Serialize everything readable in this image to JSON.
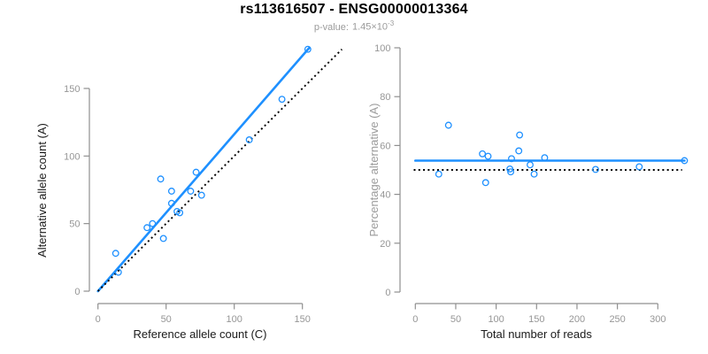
{
  "header": {
    "title": "rs113616507 - ENSG00000013364",
    "pvalue_label": "p-value:",
    "pvalue_base": "1.45×10",
    "pvalue_exponent": "-3"
  },
  "colors": {
    "accent_blue": "#1E90FF",
    "reference_line_black": "#000000",
    "axis_gray": "#8F8F8F",
    "tick_label_gray": "#969696",
    "axis_title_dark": "#1A1A1A",
    "axis_title_gray": "#9B9B9B",
    "background": "#FFFFFF"
  },
  "chart_data": [
    {
      "id": "ref-vs-alt-scatter",
      "type": "scatter",
      "title": "",
      "xlabel": "Reference allele count (C)",
      "ylabel": "Alternative allele count (A)",
      "xticks": [
        0,
        50,
        100,
        150
      ],
      "yticks": [
        0,
        50,
        100,
        150
      ],
      "xlim": [
        0,
        181
      ],
      "ylim": [
        0,
        181
      ],
      "grid": false,
      "marker": "open-circle",
      "points": [
        [
          13,
          28
        ],
        [
          15,
          14
        ],
        [
          36,
          47
        ],
        [
          40,
          50
        ],
        [
          46,
          83
        ],
        [
          48,
          39
        ],
        [
          54,
          74
        ],
        [
          54,
          65
        ],
        [
          58,
          59
        ],
        [
          60,
          58
        ],
        [
          68,
          74
        ],
        [
          72,
          88
        ],
        [
          76,
          71
        ],
        [
          111,
          112
        ],
        [
          135,
          142
        ],
        [
          154,
          179
        ]
      ],
      "lines": [
        {
          "name": "fit-line",
          "x1": 0,
          "y1": 0,
          "x2": 155,
          "y2": 180,
          "style": "solid",
          "color": "accent"
        },
        {
          "name": "identity-line",
          "x1": 0,
          "y1": 0,
          "x2": 179,
          "y2": 179,
          "style": "dotted",
          "color": "black"
        }
      ]
    },
    {
      "id": "reads-vs-percentage-scatter",
      "type": "scatter",
      "title": "",
      "xlabel": "Total number of reads",
      "ylabel": "Percentage alternative (A)",
      "xticks": [
        0,
        50,
        100,
        150,
        200,
        250,
        300
      ],
      "yticks": [
        0,
        20,
        40,
        60,
        80,
        100
      ],
      "xlim": [
        0,
        335
      ],
      "ylim": [
        0,
        100
      ],
      "grid": false,
      "marker": "open-circle",
      "points": [
        [
          41,
          68.3
        ],
        [
          29,
          48.3
        ],
        [
          83,
          56.6
        ],
        [
          90,
          55.6
        ],
        [
          129,
          64.3
        ],
        [
          87,
          44.8
        ],
        [
          128,
          57.8
        ],
        [
          119,
          54.6
        ],
        [
          117,
          50.4
        ],
        [
          118,
          49.2
        ],
        [
          142,
          52.1
        ],
        [
          160,
          55.0
        ],
        [
          147,
          48.3
        ],
        [
          223,
          50.2
        ],
        [
          277,
          51.3
        ],
        [
          333,
          53.8
        ]
      ],
      "lines": [
        {
          "name": "fit-line",
          "x1": 0,
          "y1": 53.8,
          "x2": 333,
          "y2": 53.8,
          "style": "solid",
          "color": "accent"
        },
        {
          "name": "null-line",
          "x1": -2,
          "y1": 50,
          "x2": 330,
          "y2": 50,
          "style": "dotted",
          "color": "black"
        }
      ]
    }
  ]
}
